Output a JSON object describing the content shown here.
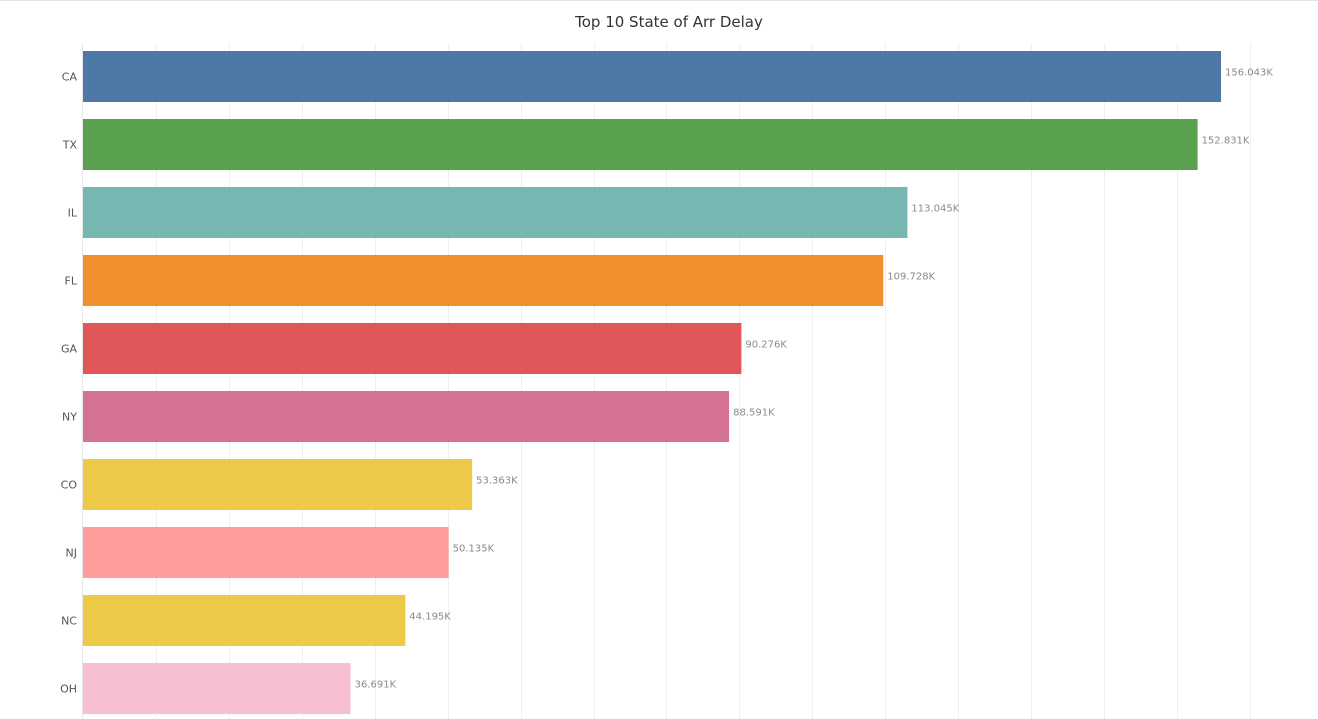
{
  "chart_data": {
    "type": "bar",
    "orientation": "horizontal",
    "title": "Top 10 State of Arr Delay",
    "xlabel": "",
    "ylabel": "",
    "categories": [
      "CA",
      "TX",
      "IL",
      "FL",
      "GA",
      "NY",
      "CO",
      "NJ",
      "NC",
      "OH"
    ],
    "values": [
      156043,
      152831,
      113045,
      109728,
      90276,
      88591,
      53363,
      50135,
      44195,
      36691
    ],
    "value_labels": [
      "156.043K",
      "152.831K",
      "113.045K",
      "109.728K",
      "90.276K",
      "88.591K",
      "53.363K",
      "50.135K",
      "44.195K",
      "36.691K"
    ],
    "colors": [
      "#4e79a7",
      "#59a14f",
      "#76b7b2",
      "#f28e2b",
      "#e15759",
      "#d37295",
      "#edc948",
      "#ff9d9a",
      "#edc948",
      "#f7bfd4"
    ],
    "xlim": [
      0,
      165000
    ],
    "x_grid_step": 10000,
    "grid": true,
    "legend": "none"
  }
}
